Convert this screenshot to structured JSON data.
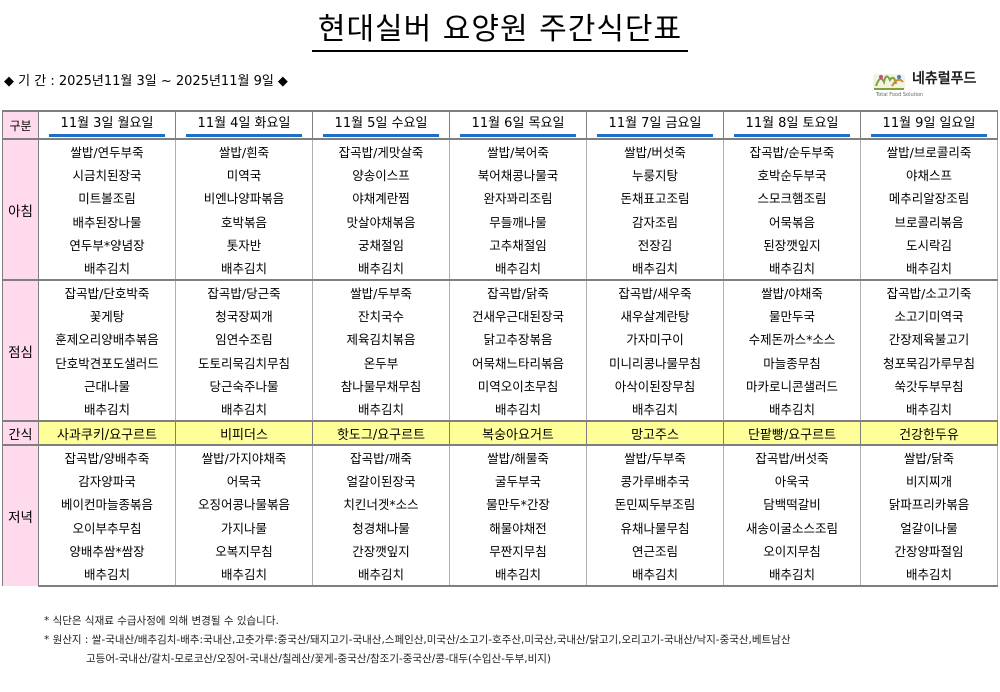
{
  "title": "현대실버 요양원 주간식단표",
  "period": "◆ 기 간 : 2025년11월 3일 ~ 2025년11월 9일 ◆",
  "logo": {
    "name": "네츄럴푸드",
    "sub": "Total Food Solution"
  },
  "table": {
    "label_header": "구분",
    "days": [
      "11월 3일 월요일",
      "11월 4일 화요일",
      "11월 5일 수요일",
      "11월 6일 목요일",
      "11월 7일 금요일",
      "11월 8일 토요일",
      "11월 9일 일요일"
    ],
    "breakfast": {
      "label": "아침",
      "rows": [
        [
          "쌀밥/연두부죽",
          "쌀밥/흰죽",
          "잡곡밥/게맛살죽",
          "쌀밥/북어죽",
          "쌀밥/버섯죽",
          "잡곡밥/순두부죽",
          "쌀밥/브로콜리죽"
        ],
        [
          "시금치된장국",
          "미역국",
          "양송이스프",
          "북어채콩나물국",
          "누룽지탕",
          "호박순두부국",
          "야채스프"
        ],
        [
          "미트볼조림",
          "비엔나양파볶음",
          "야채계란찜",
          "완자꽈리조림",
          "돈채표고조림",
          "스모크햄조림",
          "메추리알장조림"
        ],
        [
          "배추된장나물",
          "호박볶음",
          "맛살야채볶음",
          "무들깨나물",
          "감자조림",
          "어묵볶음",
          "브로콜리볶음"
        ],
        [
          "연두부*양념장",
          "톳자반",
          "궁채절임",
          "고추채절임",
          "전장김",
          "된장깻잎지",
          "도시락김"
        ],
        [
          "배추김치",
          "배추김치",
          "배추김치",
          "배추김치",
          "배추김치",
          "배추김치",
          "배추김치"
        ]
      ]
    },
    "lunch": {
      "label": "점심",
      "rows": [
        [
          "잡곡밥/단호박죽",
          "잡곡밥/당근죽",
          "쌀밥/두부죽",
          "잡곡밥/닭죽",
          "잡곡밥/새우죽",
          "쌀밥/야채죽",
          "잡곡밥/소고기죽"
        ],
        [
          "꽃게탕",
          "청국장찌개",
          "잔치국수",
          "건새우근대된장국",
          "새우살계란탕",
          "물만두국",
          "소고기미역국"
        ],
        [
          "훈제오리양배추볶음",
          "임연수조림",
          "제육김치볶음",
          "닭고추장볶음",
          "가자미구이",
          "수제돈까스*소스",
          "간장제육불고기"
        ],
        [
          "단호박견포도샐러드",
          "도토리묵김치무침",
          "온두부",
          "어묵채느타리볶음",
          "미니리콩나물무침",
          "마늘종무침",
          "청포묵김가루무침"
        ],
        [
          "근대나물",
          "당근숙주나물",
          "참나물무채무침",
          "미역오이초무침",
          "아삭이된장무침",
          "마카로니콘샐러드",
          "쑥갓두부무침"
        ],
        [
          "배추김치",
          "배추김치",
          "배추김치",
          "배추김치",
          "배추김치",
          "배추김치",
          "배추김치"
        ]
      ]
    },
    "snack": {
      "label": "간식",
      "items": [
        "사과쿠키/요구르트",
        "비피더스",
        "핫도그/요구르트",
        "복숭아요거트",
        "망고주스",
        "단팥빵/요구르트",
        "건강한두유"
      ]
    },
    "dinner": {
      "label": "저녁",
      "rows": [
        [
          "잡곡밥/양배추죽",
          "쌀밥/가지야채죽",
          "잡곡밥/깨죽",
          "쌀밥/해물죽",
          "쌀밥/두부죽",
          "잡곡밥/버섯죽",
          "쌀밥/닭죽"
        ],
        [
          "감자양파국",
          "어묵국",
          "얼갈이된장국",
          "굴두부국",
          "콩가루배추국",
          "아욱국",
          "비지찌개"
        ],
        [
          "베이컨마늘종볶음",
          "오징어콩나물볶음",
          "치킨너겟*소스",
          "물만두*간장",
          "돈민찌두부조림",
          "담백떡갈비",
          "닭파프리카볶음"
        ],
        [
          "오이부추무침",
          "가지나물",
          "청경채나물",
          "해물야채전",
          "유채나물무침",
          "새송이굴소스조림",
          "얼갈이나물"
        ],
        [
          "양배추쌈*쌈장",
          "오복지무침",
          "간장깻잎지",
          "무짠지무침",
          "연근조림",
          "오이지무침",
          "간장양파절임"
        ],
        [
          "배추김치",
          "배추김치",
          "배추김치",
          "배추김치",
          "배추김치",
          "배추김치",
          "배추김치"
        ]
      ]
    }
  },
  "notes": {
    "line1": "* 식단은 식재료 수급사정에 의해 변경될 수 있습니다.",
    "line2": "* 원산지 : 쌀-국내산/배추김치-배추:국내산,고춧가루:중국산/돼지고기-국내산,스페인산,미국산/소고기-호주산,미국산,국내산/닭고기,오리고기-국내산/낙지-중국산,베트남산",
    "line3": "고등어-국내산/갈치-모로코산/오징어-국내산/칠레산/꽃게-중국산/참조기-중국산/콩-대두(수입산-두부,비지)"
  }
}
